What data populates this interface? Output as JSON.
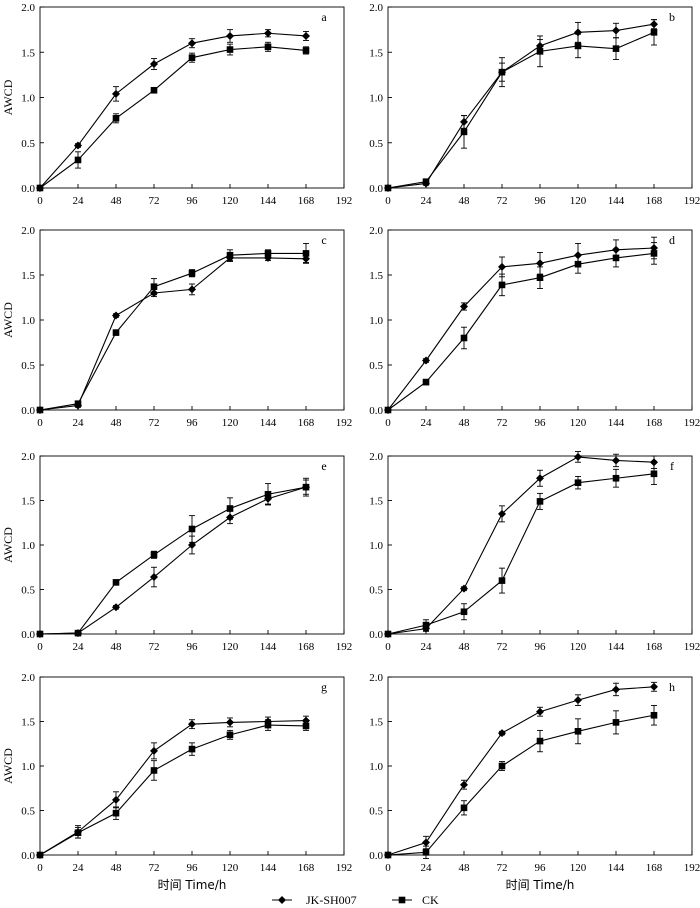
{
  "figure": {
    "xlabel": "时间 Time/h",
    "ylabel": "AWCD",
    "legend": [
      {
        "name": "JK-SH007",
        "marker": "diamond"
      },
      {
        "name": "CK",
        "marker": "square"
      }
    ],
    "line_color": "#000000"
  },
  "chart_data": [
    {
      "type": "line",
      "panel": "a",
      "x": [
        0,
        24,
        48,
        72,
        96,
        120,
        144,
        168
      ],
      "xlim": [
        0,
        192
      ],
      "ylim": [
        0,
        2.0
      ],
      "xticks": [
        0,
        24,
        48,
        72,
        96,
        120,
        144,
        168,
        192
      ],
      "yticks": [
        0.0,
        0.5,
        1.0,
        1.5,
        2.0
      ],
      "grid": false,
      "series": [
        {
          "name": "JK-SH007",
          "values": [
            0.0,
            0.47,
            1.04,
            1.37,
            1.6,
            1.68,
            1.71,
            1.68
          ],
          "err": [
            0,
            0.02,
            0.08,
            0.06,
            0.05,
            0.07,
            0.04,
            0.05
          ]
        },
        {
          "name": "CK",
          "values": [
            0.0,
            0.31,
            0.77,
            1.08,
            1.44,
            1.53,
            1.56,
            1.52
          ],
          "err": [
            0,
            0.09,
            0.05,
            0.03,
            0.05,
            0.06,
            0.05,
            0.04
          ]
        }
      ]
    },
    {
      "type": "line",
      "panel": "b",
      "x": [
        0,
        24,
        48,
        72,
        96,
        120,
        144,
        168
      ],
      "xlim": [
        0,
        192
      ],
      "ylim": [
        0,
        2.0
      ],
      "xticks": [
        0,
        24,
        48,
        72,
        96,
        120,
        144,
        168,
        192
      ],
      "yticks": [
        0.0,
        0.5,
        1.0,
        1.5,
        2.0
      ],
      "grid": false,
      "series": [
        {
          "name": "JK-SH007",
          "values": [
            0.0,
            0.05,
            0.73,
            1.28,
            1.57,
            1.72,
            1.74,
            1.81
          ],
          "err": [
            0,
            0.02,
            0.07,
            0.1,
            0.07,
            0.11,
            0.08,
            0.05
          ]
        },
        {
          "name": "CK",
          "values": [
            0.0,
            0.07,
            0.62,
            1.28,
            1.51,
            1.57,
            1.54,
            1.72
          ],
          "err": [
            0,
            0.02,
            0.18,
            0.16,
            0.17,
            0.13,
            0.12,
            0.14
          ]
        }
      ]
    },
    {
      "type": "line",
      "panel": "c",
      "x": [
        0,
        24,
        48,
        72,
        96,
        120,
        144,
        168
      ],
      "xlim": [
        0,
        192
      ],
      "ylim": [
        0,
        2.0
      ],
      "xticks": [
        0,
        24,
        48,
        72,
        96,
        120,
        144,
        168,
        192
      ],
      "yticks": [
        0.0,
        0.5,
        1.0,
        1.5,
        2.0
      ],
      "grid": false,
      "series": [
        {
          "name": "JK-SH007",
          "values": [
            0.0,
            0.05,
            1.05,
            1.3,
            1.34,
            1.69,
            1.69,
            1.68
          ],
          "err": [
            0,
            0.02,
            0.02,
            0.04,
            0.06,
            0.04,
            0.03,
            0.04
          ]
        },
        {
          "name": "CK",
          "values": [
            0.0,
            0.07,
            0.86,
            1.37,
            1.52,
            1.72,
            1.74,
            1.74
          ],
          "err": [
            0,
            0.02,
            0.02,
            0.09,
            0.04,
            0.06,
            0.04,
            0.11
          ]
        }
      ]
    },
    {
      "type": "line",
      "panel": "d",
      "x": [
        0,
        24,
        48,
        72,
        96,
        120,
        144,
        168
      ],
      "xlim": [
        0,
        192
      ],
      "ylim": [
        0,
        2.0
      ],
      "xticks": [
        0,
        24,
        48,
        72,
        96,
        120,
        144,
        168,
        192
      ],
      "yticks": [
        0.0,
        0.5,
        1.0,
        1.5,
        2.0
      ],
      "grid": false,
      "series": [
        {
          "name": "JK-SH007",
          "values": [
            0.0,
            0.55,
            1.15,
            1.59,
            1.63,
            1.72,
            1.78,
            1.8
          ],
          "err": [
            0,
            0.02,
            0.04,
            0.11,
            0.12,
            0.13,
            0.11,
            0.12
          ]
        },
        {
          "name": "CK",
          "values": [
            0.0,
            0.31,
            0.8,
            1.39,
            1.47,
            1.62,
            1.69,
            1.74
          ],
          "err": [
            0,
            0.03,
            0.12,
            0.12,
            0.12,
            0.1,
            0.1,
            0.12
          ]
        }
      ]
    },
    {
      "type": "line",
      "panel": "e",
      "x": [
        0,
        24,
        48,
        72,
        96,
        120,
        144,
        168
      ],
      "xlim": [
        0,
        192
      ],
      "ylim": [
        0,
        2.0
      ],
      "xticks": [
        0,
        24,
        48,
        72,
        96,
        120,
        144,
        168,
        192
      ],
      "yticks": [
        0.0,
        0.5,
        1.0,
        1.5,
        2.0
      ],
      "grid": false,
      "series": [
        {
          "name": "JK-SH007",
          "values": [
            0.0,
            0.01,
            0.3,
            0.64,
            1.0,
            1.31,
            1.52,
            1.65
          ],
          "err": [
            0,
            0.01,
            0.02,
            0.11,
            0.1,
            0.07,
            0.06,
            0.08
          ]
        },
        {
          "name": "CK",
          "values": [
            0.0,
            0.01,
            0.58,
            0.89,
            1.18,
            1.41,
            1.57,
            1.65
          ],
          "err": [
            0,
            0.01,
            0.02,
            0.04,
            0.15,
            0.12,
            0.12,
            0.1
          ]
        }
      ]
    },
    {
      "type": "line",
      "panel": "f",
      "x": [
        0,
        24,
        48,
        72,
        96,
        120,
        144,
        168
      ],
      "xlim": [
        0,
        192
      ],
      "ylim": [
        0,
        2.0
      ],
      "xticks": [
        0,
        24,
        48,
        72,
        96,
        120,
        144,
        168,
        192
      ],
      "yticks": [
        0.0,
        0.5,
        1.0,
        1.5,
        2.0
      ],
      "grid": false,
      "series": [
        {
          "name": "JK-SH007",
          "values": [
            0.0,
            0.06,
            0.51,
            1.35,
            1.75,
            1.99,
            1.95,
            1.93
          ],
          "err": [
            0,
            0.03,
            0.02,
            0.09,
            0.09,
            0.06,
            0.07,
            0.07
          ]
        },
        {
          "name": "CK",
          "values": [
            0.0,
            0.1,
            0.25,
            0.6,
            1.49,
            1.7,
            1.75,
            1.8
          ],
          "err": [
            0,
            0.06,
            0.09,
            0.14,
            0.09,
            0.07,
            0.1,
            0.12
          ]
        }
      ]
    },
    {
      "type": "line",
      "panel": "g",
      "x": [
        0,
        24,
        48,
        72,
        96,
        120,
        144,
        168
      ],
      "xlim": [
        0,
        192
      ],
      "ylim": [
        0,
        2.0
      ],
      "xticks": [
        0,
        24,
        48,
        72,
        96,
        120,
        144,
        168,
        192
      ],
      "yticks": [
        0.0,
        0.5,
        1.0,
        1.5,
        2.0
      ],
      "grid": false,
      "series": [
        {
          "name": "JK-SH007",
          "values": [
            0.0,
            0.26,
            0.62,
            1.17,
            1.47,
            1.49,
            1.5,
            1.51
          ],
          "err": [
            0,
            0.07,
            0.09,
            0.09,
            0.05,
            0.05,
            0.05,
            0.05
          ]
        },
        {
          "name": "CK",
          "values": [
            0.0,
            0.25,
            0.47,
            0.95,
            1.19,
            1.35,
            1.46,
            1.45
          ],
          "err": [
            0,
            0.06,
            0.07,
            0.11,
            0.07,
            0.05,
            0.06,
            0.05
          ]
        }
      ]
    },
    {
      "type": "line",
      "panel": "h",
      "x": [
        0,
        24,
        48,
        72,
        96,
        120,
        144,
        168
      ],
      "xlim": [
        0,
        192
      ],
      "ylim": [
        0,
        2.0
      ],
      "xticks": [
        0,
        24,
        48,
        72,
        96,
        120,
        144,
        168,
        192
      ],
      "yticks": [
        0.0,
        0.5,
        1.0,
        1.5,
        2.0
      ],
      "grid": false,
      "series": [
        {
          "name": "JK-SH007",
          "values": [
            0.0,
            0.14,
            0.79,
            1.37,
            1.61,
            1.74,
            1.86,
            1.89
          ],
          "err": [
            0,
            0.07,
            0.05,
            0.02,
            0.05,
            0.06,
            0.07,
            0.05
          ]
        },
        {
          "name": "CK",
          "values": [
            0.0,
            0.03,
            0.53,
            1.0,
            1.28,
            1.39,
            1.49,
            1.57
          ],
          "err": [
            0,
            0.07,
            0.08,
            0.05,
            0.12,
            0.14,
            0.13,
            0.11
          ]
        }
      ]
    }
  ]
}
